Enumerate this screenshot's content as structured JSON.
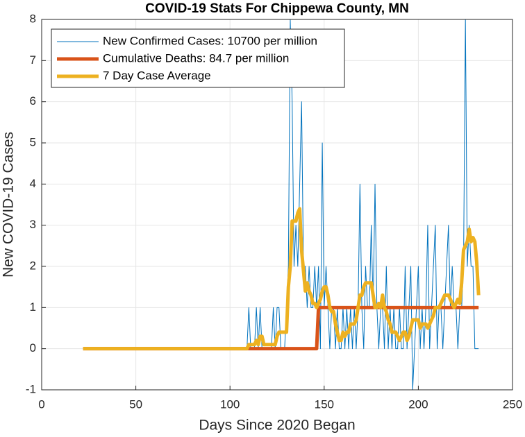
{
  "chart_data": {
    "type": "line",
    "title": "COVID-19 Stats For Chippewa County, MN",
    "xlabel": "Days Since 2020 Began",
    "ylabel": "New COVID-19 Cases",
    "xlim": [
      0,
      250
    ],
    "xticks": [
      0,
      50,
      100,
      150,
      200,
      250
    ],
    "ylim": [
      -1,
      8
    ],
    "yticks": [
      -1,
      0,
      1,
      2,
      3,
      4,
      5,
      6,
      7,
      8
    ],
    "grid": true,
    "legend": "northwest",
    "x": [
      22,
      23,
      24,
      25,
      26,
      27,
      28,
      29,
      30,
      31,
      32,
      33,
      34,
      35,
      36,
      37,
      38,
      39,
      40,
      41,
      42,
      43,
      44,
      45,
      46,
      47,
      48,
      49,
      50,
      51,
      52,
      53,
      54,
      55,
      56,
      57,
      58,
      59,
      60,
      61,
      62,
      63,
      64,
      65,
      66,
      67,
      68,
      69,
      70,
      71,
      72,
      73,
      74,
      75,
      76,
      77,
      78,
      79,
      80,
      81,
      82,
      83,
      84,
      85,
      86,
      87,
      88,
      89,
      90,
      91,
      92,
      93,
      94,
      95,
      96,
      97,
      98,
      99,
      100,
      101,
      102,
      103,
      104,
      105,
      106,
      107,
      108,
      109,
      110,
      111,
      112,
      113,
      114,
      115,
      116,
      117,
      118,
      119,
      120,
      121,
      122,
      123,
      124,
      125,
      126,
      127,
      128,
      129,
      130,
      131,
      132,
      133,
      134,
      135,
      136,
      137,
      138,
      139,
      140,
      141,
      142,
      143,
      144,
      145,
      146,
      147,
      148,
      149,
      150,
      151,
      152,
      153,
      154,
      155,
      156,
      157,
      158,
      159,
      160,
      161,
      162,
      163,
      164,
      165,
      166,
      167,
      168,
      169,
      170,
      171,
      172,
      173,
      174,
      175,
      176,
      177,
      178,
      179,
      180,
      181,
      182,
      183,
      184,
      185,
      186,
      187,
      188,
      189,
      190,
      191,
      192,
      193,
      194,
      195,
      196,
      197,
      198,
      199,
      200,
      201,
      202,
      203,
      204,
      205,
      206,
      207,
      208,
      209,
      210,
      211,
      212,
      213,
      214,
      215,
      216,
      217,
      218,
      219,
      220,
      221,
      222,
      223,
      224,
      225,
      226,
      227,
      228,
      229,
      230,
      231,
      232
    ],
    "series": [
      {
        "name": "New Confirmed Cases: 10700 per million",
        "color": "#0072bd",
        "width": 1,
        "values": [
          0,
          0,
          0,
          0,
          0,
          0,
          0,
          0,
          0,
          0,
          0,
          0,
          0,
          0,
          0,
          0,
          0,
          0,
          0,
          0,
          0,
          0,
          0,
          0,
          0,
          0,
          0,
          0,
          0,
          0,
          0,
          0,
          0,
          0,
          0,
          0,
          0,
          0,
          0,
          0,
          0,
          0,
          0,
          0,
          0,
          0,
          0,
          0,
          0,
          0,
          0,
          0,
          0,
          0,
          0,
          0,
          0,
          0,
          0,
          0,
          0,
          0,
          0,
          0,
          0,
          0,
          0,
          0,
          0,
          0,
          0,
          0,
          0,
          0,
          0,
          0,
          0,
          0,
          0,
          0,
          0,
          0,
          0,
          0,
          0,
          0,
          0,
          0,
          1,
          0,
          0,
          0,
          1,
          0,
          1,
          0,
          0,
          0,
          0,
          0,
          0,
          1,
          0,
          1,
          1,
          0,
          0,
          0,
          1,
          2,
          8,
          6,
          2,
          3,
          2,
          4,
          6,
          2,
          2,
          1,
          2,
          1,
          1,
          2,
          1,
          2,
          0,
          5,
          1,
          2,
          1,
          0,
          1,
          1,
          0,
          1,
          0,
          0,
          1,
          0,
          1,
          0,
          1,
          0,
          1,
          0,
          1,
          4,
          1,
          0,
          2,
          1,
          1,
          3,
          1,
          4,
          1,
          0,
          1,
          1,
          0,
          2,
          0,
          1,
          0,
          1,
          0,
          0,
          1,
          0,
          0,
          2,
          0,
          1,
          2,
          -1,
          0,
          1,
          2,
          0,
          1,
          0,
          1,
          3,
          0,
          1,
          2,
          3,
          0,
          1,
          1,
          0,
          1,
          2,
          3,
          1,
          2,
          1,
          1,
          0,
          1,
          1,
          2,
          8,
          2,
          3,
          2,
          2,
          0,
          0,
          0
        ]
      },
      {
        "name": "Cumulative Deaths: 84.7 per million",
        "color": "#d95319",
        "width": 5,
        "values": [
          0,
          0,
          0,
          0,
          0,
          0,
          0,
          0,
          0,
          0,
          0,
          0,
          0,
          0,
          0,
          0,
          0,
          0,
          0,
          0,
          0,
          0,
          0,
          0,
          0,
          0,
          0,
          0,
          0,
          0,
          0,
          0,
          0,
          0,
          0,
          0,
          0,
          0,
          0,
          0,
          0,
          0,
          0,
          0,
          0,
          0,
          0,
          0,
          0,
          0,
          0,
          0,
          0,
          0,
          0,
          0,
          0,
          0,
          0,
          0,
          0,
          0,
          0,
          0,
          0,
          0,
          0,
          0,
          0,
          0,
          0,
          0,
          0,
          0,
          0,
          0,
          0,
          0,
          0,
          0,
          0,
          0,
          0,
          0,
          0,
          0,
          0,
          0,
          0,
          0,
          0,
          0,
          0,
          0,
          0,
          0,
          0,
          0,
          0,
          0,
          0,
          0,
          0,
          0,
          0,
          0,
          0,
          0,
          0,
          0,
          0,
          0,
          0,
          0,
          0,
          0,
          0,
          0,
          0,
          0,
          0,
          0,
          0,
          0,
          0,
          1,
          1,
          1,
          1,
          1,
          1,
          1,
          1,
          1,
          1,
          1,
          1,
          1,
          1,
          1,
          1,
          1,
          1,
          1,
          1,
          1,
          1,
          1,
          1,
          1,
          1,
          1,
          1,
          1,
          1,
          1,
          1,
          1,
          1,
          1,
          1,
          1,
          1,
          1,
          1,
          1,
          1,
          1,
          1,
          1,
          1,
          1,
          1,
          1,
          1,
          1,
          1,
          1,
          1,
          1,
          1,
          1,
          1,
          1,
          1,
          1,
          1,
          1,
          1,
          1,
          1,
          1,
          1,
          1,
          1,
          1,
          1,
          1,
          1,
          1,
          1,
          1,
          1,
          1,
          1,
          1,
          1,
          1,
          1,
          1,
          1
        ]
      },
      {
        "name": "7 Day Case Average",
        "color": "#edb120",
        "width": 5,
        "values": [
          0,
          0,
          0,
          0,
          0,
          0,
          0,
          0,
          0,
          0,
          0,
          0,
          0,
          0,
          0,
          0,
          0,
          0,
          0,
          0,
          0,
          0,
          0,
          0,
          0,
          0,
          0,
          0,
          0,
          0,
          0,
          0,
          0,
          0,
          0,
          0,
          0,
          0,
          0,
          0,
          0,
          0,
          0,
          0,
          0,
          0,
          0,
          0,
          0,
          0,
          0,
          0,
          0,
          0,
          0,
          0,
          0,
          0,
          0,
          0,
          0,
          0,
          0,
          0,
          0,
          0,
          0,
          0,
          0,
          0,
          0,
          0,
          0,
          0,
          0,
          0,
          0,
          0,
          0,
          0,
          0,
          0,
          0,
          0,
          0,
          0,
          0,
          0,
          0.1,
          0.1,
          0.1,
          0.1,
          0.2,
          0.1,
          0.3,
          0.3,
          0.1,
          0.1,
          0.1,
          0.1,
          0.1,
          0.1,
          0.1,
          0.3,
          0.4,
          0.4,
          0.4,
          0.4,
          0.4,
          1.5,
          2.0,
          3.1,
          3.1,
          3.1,
          3.3,
          3.4,
          2.4,
          1.9,
          1.4,
          1.6,
          1.4,
          1.3,
          1.1,
          1.1,
          1.0,
          1.1,
          1.2,
          1.4,
          1.5,
          1.5,
          1.3,
          1.0,
          0.9,
          0.9,
          0.6,
          0.4,
          0.2,
          0.2,
          0.4,
          0.3,
          0.4,
          0.4,
          0.6,
          0.6,
          0.6,
          0.7,
          1.0,
          1.3,
          1.3,
          1.5,
          1.6,
          1.6,
          1.6,
          1.6,
          1.3,
          1.0,
          1.0,
          1.1,
          1.0,
          1.3,
          1.0,
          0.9,
          0.7,
          0.6,
          0.4,
          0.4,
          0.4,
          0.3,
          0.2,
          0.3,
          0.4,
          0.4,
          0.2,
          0.3,
          0.5,
          0.7,
          0.7,
          0.7,
          0.7,
          0.5,
          0.6,
          0.6,
          0.6,
          0.5,
          0.6,
          0.7,
          0.8,
          1.0,
          1.0,
          1.0,
          1.1,
          1.2,
          1.3,
          1.3,
          1.3,
          1.2,
          1.1,
          1.0,
          1.1,
          1.2,
          1.1,
          1.6,
          2.4,
          2.5,
          2.6,
          2.9,
          2.6,
          2.7,
          2.6,
          2.1,
          1.3
        ]
      }
    ]
  }
}
